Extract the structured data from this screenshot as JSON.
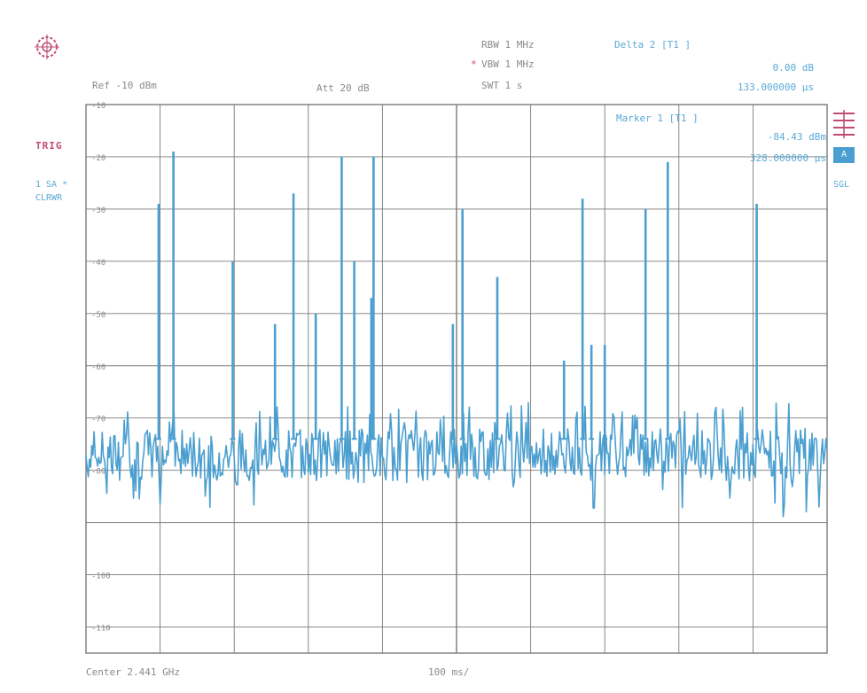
{
  "header": {
    "rbw": "RBW 1 MHz",
    "vbw_marker": "*",
    "vbw": "VBW 1 MHz",
    "swt": "SWT 1 s",
    "ref_level": "Ref -10 dBm",
    "att": "Att 20 dB",
    "delta_title": "Delta 2 [T1 ]",
    "delta_level": "0.00 dB",
    "delta_time": "133.000000 µs"
  },
  "marker": {
    "title": "Marker 1 [T1 ]",
    "level": "-84.43 dBm",
    "time": "328.000000 µs"
  },
  "left_panel": {
    "trig": "TRIG",
    "trace_mode": "1 SA *",
    "trace_mode2": "CLRWR"
  },
  "right_panel": {
    "box_label": "A",
    "side_label": "SGL"
  },
  "footer": {
    "center": "Center 2.441 GHz",
    "time_div": "100 ms/"
  },
  "colors": {
    "trace": "#4b9fd0",
    "grid": "#7a7a7a",
    "text_gray": "#8a8a8a",
    "text_blue": "#5aa9d6",
    "accent_red": "#c04a70"
  },
  "chart_data": {
    "type": "line",
    "title": "",
    "xlabel": "",
    "ylabel": "",
    "ylim": [
      -115,
      -10
    ],
    "y_ticks": [
      -10,
      -20,
      -30,
      -40,
      -50,
      -60,
      -70,
      -80,
      -100,
      -110
    ],
    "x_divisions": 10,
    "grid": true,
    "noise_floor_dbm": -77,
    "series": [
      {
        "name": "",
        "peaks": [
          {
            "x": 0.98,
            "y": -29
          },
          {
            "x": 1.18,
            "y": -19
          },
          {
            "x": 1.98,
            "y": -40
          },
          {
            "x": 2.55,
            "y": -52
          },
          {
            "x": 2.8,
            "y": -27
          },
          {
            "x": 3.1,
            "y": -50
          },
          {
            "x": 3.45,
            "y": -20
          },
          {
            "x": 3.62,
            "y": -40
          },
          {
            "x": 3.85,
            "y": -47
          },
          {
            "x": 3.88,
            "y": -20
          },
          {
            "x": 4.95,
            "y": -52
          },
          {
            "x": 5.08,
            "y": -30
          },
          {
            "x": 5.55,
            "y": -43
          },
          {
            "x": 6.45,
            "y": -59
          },
          {
            "x": 6.7,
            "y": -28
          },
          {
            "x": 6.82,
            "y": -56
          },
          {
            "x": 7.0,
            "y": -56
          },
          {
            "x": 7.55,
            "y": -30
          },
          {
            "x": 7.85,
            "y": -21
          },
          {
            "x": 9.05,
            "y": -29
          }
        ]
      }
    ]
  }
}
